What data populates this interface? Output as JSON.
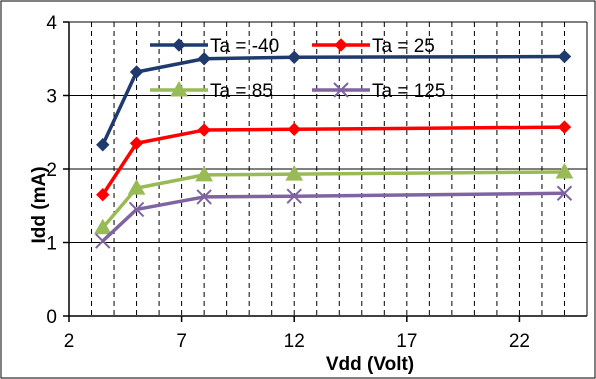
{
  "chart_data": {
    "type": "line",
    "xlabel": "Vdd (Volt)",
    "ylabel": "Idd  (mA)",
    "xlim": [
      2,
      25
    ],
    "ylim": [
      0,
      4
    ],
    "x_ticks": [
      2,
      7,
      12,
      17,
      22
    ],
    "y_ticks": [
      0,
      1,
      2,
      3,
      4
    ],
    "x_grid": [
      3,
      4,
      5,
      6,
      7,
      8,
      9,
      10,
      11,
      12,
      13,
      14,
      15,
      16,
      17,
      18,
      19,
      20,
      21,
      22,
      23,
      24
    ],
    "y_grid": [
      1,
      2,
      3
    ],
    "grid": "dashed-vertical, solid-horizontal",
    "legend_position": "top",
    "x": [
      3.5,
      5,
      8,
      12,
      24
    ],
    "series": [
      {
        "name": "Ta = -40",
        "color": "#1f3a6e",
        "marker": "diamond",
        "values": [
          2.33,
          3.32,
          3.5,
          3.52,
          3.53
        ]
      },
      {
        "name": "Ta = 25",
        "color": "#ff0000",
        "marker": "diamond",
        "values": [
          1.65,
          2.35,
          2.53,
          2.54,
          2.57
        ]
      },
      {
        "name": "Ta = 85",
        "color": "#99bb55",
        "marker": "triangle",
        "values": [
          1.2,
          1.74,
          1.92,
          1.93,
          1.96
        ]
      },
      {
        "name": "Ta = 125",
        "color": "#8064a2",
        "marker": "x",
        "values": [
          1.02,
          1.45,
          1.62,
          1.63,
          1.67
        ]
      }
    ]
  }
}
